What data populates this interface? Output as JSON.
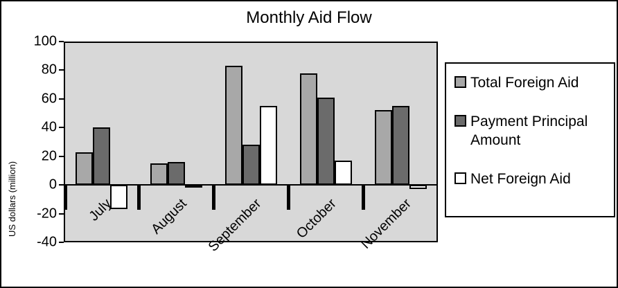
{
  "title": "Monthly Aid Flow",
  "y_axis_title": "US dollars (million)",
  "chart_data": {
    "type": "bar",
    "title": "Monthly Aid Flow",
    "xlabel": "",
    "ylabel": "US dollars (million)",
    "categories": [
      "July",
      "August",
      "September",
      "October",
      "November"
    ],
    "series": [
      {
        "name": "Total Foreign Aid",
        "color": "#a8a8a8",
        "values": [
          23,
          15,
          83,
          78,
          52
        ]
      },
      {
        "name": "Payment Principal Amount",
        "color": "#6b6b6b",
        "values": [
          40,
          16,
          28,
          61,
          55
        ]
      },
      {
        "name": "Net Foreign Aid",
        "color": "#ffffff",
        "values": [
          -17,
          -2,
          55,
          17,
          -3
        ]
      }
    ],
    "ylim": [
      -40,
      100
    ],
    "yticks": [
      100,
      80,
      60,
      40,
      20,
      0,
      -20,
      -40
    ],
    "grid": false,
    "legend_position": "right",
    "plot_bg": "#d8d8d8"
  }
}
